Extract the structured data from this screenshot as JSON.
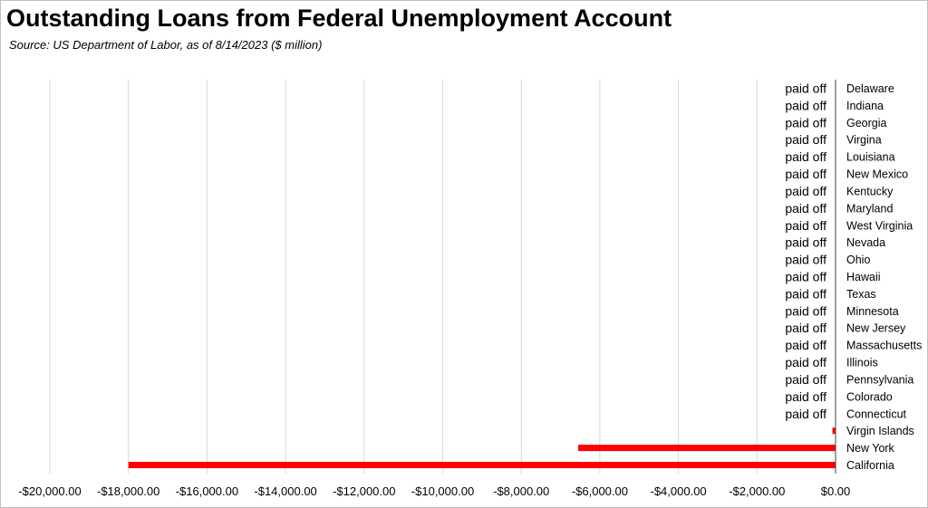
{
  "title": "Outstanding Loans from Federal Unemployment Account",
  "subtitle": "Source:  US Department of Labor, as of 8/14/2023  ($ million)",
  "chart_data": {
    "type": "bar",
    "orientation": "horizontal",
    "title": "Outstanding Loans from Federal Unemployment Account",
    "subtitle": "Source:  US Department of Labor, as of 8/14/2023  ($ million)",
    "xlim": [
      -20000,
      0
    ],
    "xticks": [
      -20000,
      -18000,
      -16000,
      -14000,
      -12000,
      -10000,
      -8000,
      -6000,
      -4000,
      -2000,
      0
    ],
    "xtick_labels": [
      "-$20,000.00",
      "-$18,000.00",
      "-$16,000.00",
      "-$14,000.00",
      "-$12,000.00",
      "-$10,000.00",
      "-$8,000.00",
      "-$6,000.00",
      "-$4,000.00",
      "-$2,000.00",
      "$0.00"
    ],
    "grid": "vertical",
    "bar_color": "#ff0000",
    "categories": [
      "Delaware",
      "Indiana",
      "Georgia",
      "Virgina",
      "Louisiana",
      "New Mexico",
      "Kentucky",
      "Maryland",
      "West Virginia",
      "Nevada",
      "Ohio",
      "Hawaii",
      "Texas",
      "Minnesota",
      "New Jersey",
      "Massachusetts",
      "Illinois",
      "Pennsylvania",
      "Colorado",
      "Connecticut",
      "Virgin Islands",
      "New York",
      "California"
    ],
    "values": [
      0,
      0,
      0,
      0,
      0,
      0,
      0,
      0,
      0,
      0,
      0,
      0,
      0,
      0,
      0,
      0,
      0,
      0,
      0,
      0,
      -80,
      -6550,
      -18000
    ],
    "data_labels": [
      "paid off",
      "paid off",
      "paid off",
      "paid off",
      "paid off",
      "paid off",
      "paid off",
      "paid off",
      "paid off",
      "paid off",
      "paid off",
      "paid off",
      "paid off",
      "paid off",
      "paid off",
      "paid off",
      "paid off",
      "paid off",
      "paid off",
      "paid off",
      "",
      "",
      ""
    ]
  }
}
